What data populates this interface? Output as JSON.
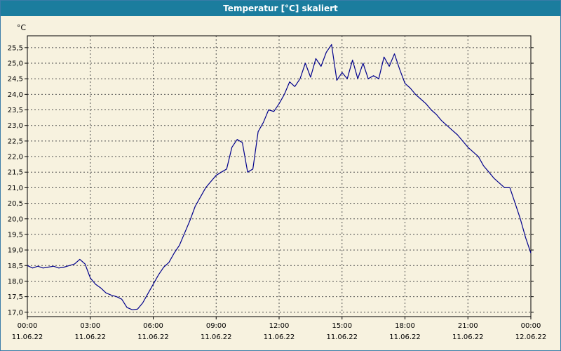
{
  "window": {
    "title": "Temperatur [°C] skaliert"
  },
  "colors": {
    "titlebar_bg": "#1b7d9e",
    "titlebar_text": "#ffffff",
    "background": "#f7f2df",
    "plot_border": "#000000",
    "grid": "#4d4d4d",
    "line": "#00008c"
  },
  "chart_data": {
    "type": "line",
    "title": "Temperatur [°C] skaliert",
    "y_unit_label": "°C",
    "ylim": [
      17.0,
      25.5
    ],
    "xlim_hours": [
      0,
      24
    ],
    "grid": "dashed",
    "legend": "none",
    "y_ticks": [
      {
        "value": 25.5,
        "label": "25,5"
      },
      {
        "value": 25.0,
        "label": "25,0"
      },
      {
        "value": 24.5,
        "label": "24,5"
      },
      {
        "value": 24.0,
        "label": "24,0"
      },
      {
        "value": 23.5,
        "label": "23,5"
      },
      {
        "value": 23.0,
        "label": "23,0"
      },
      {
        "value": 22.5,
        "label": "22,5"
      },
      {
        "value": 22.0,
        "label": "22,0"
      },
      {
        "value": 21.5,
        "label": "21,5"
      },
      {
        "value": 21.0,
        "label": "21,0"
      },
      {
        "value": 20.5,
        "label": "20,5"
      },
      {
        "value": 20.0,
        "label": "20,0"
      },
      {
        "value": 19.5,
        "label": "19,5"
      },
      {
        "value": 19.0,
        "label": "19,0"
      },
      {
        "value": 18.5,
        "label": "18,5"
      },
      {
        "value": 18.0,
        "label": "18,0"
      },
      {
        "value": 17.5,
        "label": "17,5"
      },
      {
        "value": 17.0,
        "label": "17,0"
      }
    ],
    "x_ticks": [
      {
        "hour": 0,
        "time": "00:00",
        "date": "11.06.22"
      },
      {
        "hour": 3,
        "time": "03:00",
        "date": "11.06.22"
      },
      {
        "hour": 6,
        "time": "06:00",
        "date": "11.06.22"
      },
      {
        "hour": 9,
        "time": "09:00",
        "date": "11.06.22"
      },
      {
        "hour": 12,
        "time": "12:00",
        "date": "11.06.22"
      },
      {
        "hour": 15,
        "time": "15:00",
        "date": "11.06.22"
      },
      {
        "hour": 18,
        "time": "18:00",
        "date": "11.06.22"
      },
      {
        "hour": 21,
        "time": "21:00",
        "date": "11.06.22"
      },
      {
        "hour": 24,
        "time": "00:00",
        "date": "12.06.22"
      }
    ],
    "series": [
      {
        "name": "Temperatur",
        "color": "#00008c",
        "points": [
          [
            0,
            18.5
          ],
          [
            0.25,
            18.42
          ],
          [
            0.5,
            18.48
          ],
          [
            0.75,
            18.42
          ],
          [
            1,
            18.45
          ],
          [
            1.25,
            18.48
          ],
          [
            1.5,
            18.42
          ],
          [
            1.75,
            18.45
          ],
          [
            2,
            18.5
          ],
          [
            2.25,
            18.55
          ],
          [
            2.5,
            18.7
          ],
          [
            2.75,
            18.55
          ],
          [
            3,
            18.1
          ],
          [
            3.25,
            17.9
          ],
          [
            3.5,
            17.78
          ],
          [
            3.75,
            17.62
          ],
          [
            4,
            17.55
          ],
          [
            4.25,
            17.5
          ],
          [
            4.5,
            17.42
          ],
          [
            4.75,
            17.15
          ],
          [
            5,
            17.08
          ],
          [
            5.25,
            17.1
          ],
          [
            5.5,
            17.3
          ],
          [
            5.75,
            17.6
          ],
          [
            6,
            17.9
          ],
          [
            6.25,
            18.2
          ],
          [
            6.5,
            18.45
          ],
          [
            6.75,
            18.6
          ],
          [
            7,
            18.9
          ],
          [
            7.25,
            19.15
          ],
          [
            7.5,
            19.55
          ],
          [
            7.75,
            19.95
          ],
          [
            8,
            20.4
          ],
          [
            8.25,
            20.7
          ],
          [
            8.5,
            21.0
          ],
          [
            8.75,
            21.2
          ],
          [
            9,
            21.4
          ],
          [
            9.25,
            21.5
          ],
          [
            9.5,
            21.6
          ],
          [
            9.75,
            22.3
          ],
          [
            10,
            22.55
          ],
          [
            10.25,
            22.45
          ],
          [
            10.5,
            21.5
          ],
          [
            10.75,
            21.6
          ],
          [
            11,
            22.8
          ],
          [
            11.25,
            23.1
          ],
          [
            11.5,
            23.5
          ],
          [
            11.75,
            23.45
          ],
          [
            12,
            23.7
          ],
          [
            12.25,
            24.0
          ],
          [
            12.5,
            24.4
          ],
          [
            12.75,
            24.25
          ],
          [
            13,
            24.5
          ],
          [
            13.25,
            25.0
          ],
          [
            13.5,
            24.55
          ],
          [
            13.75,
            25.15
          ],
          [
            14,
            24.9
          ],
          [
            14.25,
            25.35
          ],
          [
            14.5,
            25.6
          ],
          [
            14.75,
            24.45
          ],
          [
            15,
            24.7
          ],
          [
            15.25,
            24.5
          ],
          [
            15.5,
            25.1
          ],
          [
            15.75,
            24.5
          ],
          [
            16,
            25.0
          ],
          [
            16.25,
            24.5
          ],
          [
            16.5,
            24.6
          ],
          [
            16.75,
            24.5
          ],
          [
            17,
            25.2
          ],
          [
            17.25,
            24.9
          ],
          [
            17.5,
            25.3
          ],
          [
            17.75,
            24.8
          ],
          [
            18,
            24.35
          ],
          [
            18.25,
            24.2
          ],
          [
            18.5,
            24.0
          ],
          [
            18.75,
            23.85
          ],
          [
            19,
            23.7
          ],
          [
            19.25,
            23.5
          ],
          [
            19.5,
            23.35
          ],
          [
            19.75,
            23.15
          ],
          [
            20,
            23.0
          ],
          [
            20.25,
            22.85
          ],
          [
            20.5,
            22.7
          ],
          [
            20.75,
            22.5
          ],
          [
            21,
            22.3
          ],
          [
            21.25,
            22.15
          ],
          [
            21.5,
            22.0
          ],
          [
            21.75,
            21.7
          ],
          [
            22,
            21.5
          ],
          [
            22.25,
            21.3
          ],
          [
            22.5,
            21.15
          ],
          [
            22.75,
            21.0
          ],
          [
            23,
            21.0
          ],
          [
            23.25,
            20.5
          ],
          [
            23.5,
            20.0
          ],
          [
            23.75,
            19.4
          ],
          [
            24,
            18.9
          ]
        ]
      }
    ]
  }
}
